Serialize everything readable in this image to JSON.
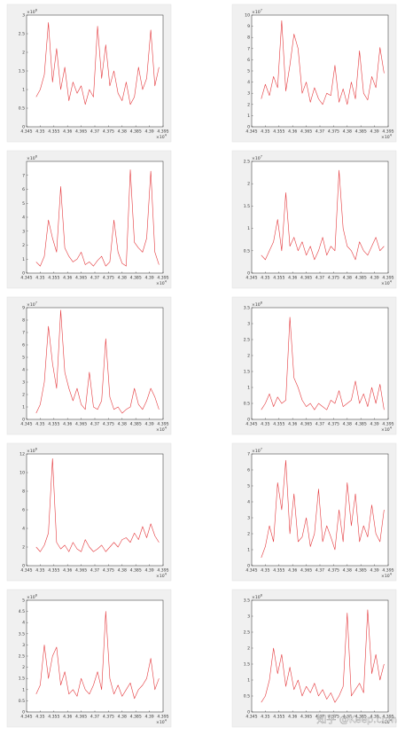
{
  "chart_data": [
    {
      "type": "line",
      "x": [
        4.3485,
        4.35,
        4.3515,
        4.353,
        4.3545,
        4.356,
        4.3575,
        4.359,
        4.3605,
        4.362,
        4.3635,
        4.365,
        4.3665,
        4.368,
        4.3695,
        4.371,
        4.3725,
        4.374,
        4.3755,
        4.377,
        4.3785,
        4.38,
        4.3815,
        4.383,
        4.3845,
        4.386,
        4.3875,
        4.389,
        4.3905,
        4.392,
        4.3935
      ],
      "values": [
        0.8,
        1.0,
        1.4,
        2.8,
        1.2,
        2.1,
        1.0,
        1.6,
        0.7,
        1.2,
        0.9,
        1.1,
        0.6,
        1.0,
        0.8,
        2.7,
        1.3,
        2.2,
        1.1,
        1.5,
        0.9,
        0.7,
        1.2,
        0.6,
        0.8,
        1.6,
        1.0,
        1.3,
        2.6,
        1.1,
        1.6
      ],
      "color": "#e4383c",
      "xlim": [
        4.345,
        4.395
      ],
      "xticks": [
        4.345,
        4.35,
        4.355,
        4.36,
        4.365,
        4.37,
        4.375,
        4.38,
        4.385,
        4.39,
        4.395
      ],
      "ylim": [
        0,
        3
      ],
      "yticks": [
        0,
        0.5,
        1,
        1.5,
        2,
        2.5,
        3
      ],
      "x_multiplier": {
        "base": "×10",
        "power": "4"
      },
      "y_multiplier": {
        "base": "×10",
        "power": "8"
      }
    },
    {
      "type": "line",
      "x": [
        4.3485,
        4.35,
        4.3515,
        4.353,
        4.3545,
        4.356,
        4.3575,
        4.359,
        4.3605,
        4.362,
        4.3635,
        4.365,
        4.3665,
        4.368,
        4.3695,
        4.371,
        4.3725,
        4.374,
        4.3755,
        4.377,
        4.3785,
        4.38,
        4.3815,
        4.383,
        4.3845,
        4.386,
        4.3875,
        4.389,
        4.3905,
        4.392,
        4.3935
      ],
      "values": [
        2.5,
        3.8,
        2.8,
        4.5,
        3.5,
        9.5,
        3.2,
        5.5,
        8.3,
        7.0,
        3.0,
        4.0,
        2.2,
        3.5,
        2.5,
        2.0,
        3.0,
        2.8,
        5.5,
        2.2,
        3.4,
        2.0,
        4.0,
        2.5,
        6.8,
        3.0,
        2.4,
        4.5,
        3.5,
        7.1,
        4.8
      ],
      "color": "#e4383c",
      "xlim": [
        4.345,
        4.395
      ],
      "xticks": [
        4.345,
        4.35,
        4.355,
        4.36,
        4.365,
        4.37,
        4.375,
        4.38,
        4.385,
        4.39,
        4.395
      ],
      "ylim": [
        0,
        10
      ],
      "yticks": [
        0,
        1,
        2,
        3,
        4,
        5,
        6,
        7,
        8,
        9,
        10
      ],
      "x_multiplier": {
        "base": "×10",
        "power": "4"
      },
      "y_multiplier": {
        "base": "×10",
        "power": "7"
      }
    },
    {
      "type": "line",
      "x": [
        4.3485,
        4.35,
        4.3515,
        4.353,
        4.3545,
        4.356,
        4.3575,
        4.359,
        4.3605,
        4.362,
        4.3635,
        4.365,
        4.3665,
        4.368,
        4.3695,
        4.371,
        4.3725,
        4.374,
        4.3755,
        4.377,
        4.3785,
        4.38,
        4.3815,
        4.383,
        4.3845,
        4.386,
        4.3875,
        4.389,
        4.3905,
        4.392,
        4.3935
      ],
      "values": [
        0.8,
        0.5,
        1.2,
        3.8,
        2.5,
        1.5,
        6.2,
        1.8,
        1.2,
        0.8,
        1.0,
        1.5,
        0.6,
        0.8,
        0.5,
        0.9,
        1.2,
        0.5,
        0.8,
        3.8,
        1.5,
        0.7,
        0.5,
        7.4,
        2.2,
        1.8,
        1.5,
        2.5,
        7.3,
        1.5,
        0.6
      ],
      "color": "#e4383c",
      "xlim": [
        4.345,
        4.395
      ],
      "xticks": [
        4.345,
        4.35,
        4.355,
        4.36,
        4.365,
        4.37,
        4.375,
        4.38,
        4.385,
        4.39,
        4.395
      ],
      "ylim": [
        0,
        8
      ],
      "yticks": [
        0,
        1,
        2,
        3,
        4,
        5,
        6,
        7
      ],
      "x_multiplier": {
        "base": "×10",
        "power": "4"
      },
      "y_multiplier": {
        "base": "×10",
        "power": "8"
      }
    },
    {
      "type": "line",
      "x": [
        4.3485,
        4.35,
        4.3515,
        4.353,
        4.3545,
        4.356,
        4.3575,
        4.359,
        4.3605,
        4.362,
        4.3635,
        4.365,
        4.3665,
        4.368,
        4.3695,
        4.371,
        4.3725,
        4.374,
        4.3755,
        4.377,
        4.3785,
        4.38,
        4.3815,
        4.383,
        4.3845,
        4.386,
        4.3875,
        4.389,
        4.3905,
        4.392,
        4.3935
      ],
      "values": [
        0.4,
        0.3,
        0.5,
        0.7,
        1.2,
        0.5,
        1.8,
        0.6,
        0.8,
        0.5,
        0.7,
        0.4,
        0.6,
        0.3,
        0.5,
        0.8,
        0.4,
        0.6,
        0.5,
        2.3,
        1.0,
        0.6,
        0.5,
        0.3,
        0.7,
        0.5,
        0.4,
        0.6,
        0.8,
        0.5,
        0.6
      ],
      "color": "#e4383c",
      "xlim": [
        4.345,
        4.395
      ],
      "xticks": [
        4.345,
        4.35,
        4.355,
        4.36,
        4.365,
        4.37,
        4.375,
        4.38,
        4.385,
        4.39,
        4.395
      ],
      "ylim": [
        0,
        2.5
      ],
      "yticks": [
        0,
        0.5,
        1,
        1.5,
        2,
        2.5
      ],
      "x_multiplier": {
        "base": "×10",
        "power": "4"
      },
      "y_multiplier": {
        "base": "×10",
        "power": "7"
      }
    },
    {
      "type": "line",
      "x": [
        4.3485,
        4.35,
        4.3515,
        4.353,
        4.3545,
        4.356,
        4.3575,
        4.359,
        4.3605,
        4.362,
        4.3635,
        4.365,
        4.3665,
        4.368,
        4.3695,
        4.371,
        4.3725,
        4.374,
        4.3755,
        4.377,
        4.3785,
        4.38,
        4.3815,
        4.383,
        4.3845,
        4.386,
        4.3875,
        4.389,
        4.3905,
        4.392,
        4.3935
      ],
      "values": [
        0.5,
        1.2,
        3.0,
        7.5,
        4.5,
        2.5,
        8.8,
        3.8,
        2.5,
        1.5,
        2.5,
        1.2,
        0.8,
        3.8,
        1.0,
        0.8,
        1.5,
        6.5,
        1.8,
        0.8,
        1.0,
        0.5,
        0.8,
        1.0,
        2.5,
        1.2,
        0.8,
        1.5,
        2.5,
        1.8,
        0.8
      ],
      "color": "#e4383c",
      "xlim": [
        4.345,
        4.395
      ],
      "xticks": [
        4.345,
        4.35,
        4.355,
        4.36,
        4.365,
        4.37,
        4.375,
        4.38,
        4.385,
        4.39,
        4.395
      ],
      "ylim": [
        0,
        9
      ],
      "yticks": [
        0,
        1,
        2,
        3,
        4,
        5,
        6,
        7,
        8,
        9
      ],
      "x_multiplier": {
        "base": "×10",
        "power": "4"
      },
      "y_multiplier": {
        "base": "×10",
        "power": "7"
      }
    },
    {
      "type": "line",
      "x": [
        4.3485,
        4.35,
        4.3515,
        4.353,
        4.3545,
        4.356,
        4.3575,
        4.359,
        4.3605,
        4.362,
        4.3635,
        4.365,
        4.3665,
        4.368,
        4.3695,
        4.371,
        4.3725,
        4.374,
        4.3755,
        4.377,
        4.3785,
        4.38,
        4.3815,
        4.383,
        4.3845,
        4.386,
        4.3875,
        4.389,
        4.3905,
        4.392,
        4.3935
      ],
      "values": [
        0.3,
        0.5,
        0.8,
        0.4,
        0.7,
        0.5,
        0.6,
        3.2,
        1.3,
        1.0,
        0.6,
        0.4,
        0.5,
        0.3,
        0.5,
        0.4,
        0.3,
        0.6,
        0.5,
        0.9,
        0.4,
        0.5,
        0.6,
        1.2,
        0.5,
        0.8,
        0.4,
        1.0,
        0.5,
        1.1,
        0.3
      ],
      "color": "#e4383c",
      "xlim": [
        4.345,
        4.395
      ],
      "xticks": [
        4.345,
        4.35,
        4.355,
        4.36,
        4.365,
        4.37,
        4.375,
        4.38,
        4.385,
        4.39,
        4.395
      ],
      "ylim": [
        0,
        3.5
      ],
      "yticks": [
        0,
        0.5,
        1,
        1.5,
        2,
        2.5,
        3,
        3.5
      ],
      "x_multiplier": {
        "base": "×10",
        "power": "4"
      },
      "y_multiplier": {
        "base": "×10",
        "power": "8"
      }
    },
    {
      "type": "line",
      "x": [
        4.3485,
        4.35,
        4.3515,
        4.353,
        4.3545,
        4.356,
        4.3575,
        4.359,
        4.3605,
        4.362,
        4.3635,
        4.365,
        4.3665,
        4.368,
        4.3695,
        4.371,
        4.3725,
        4.374,
        4.3755,
        4.377,
        4.3785,
        4.38,
        4.3815,
        4.383,
        4.3845,
        4.386,
        4.3875,
        4.389,
        4.3905,
        4.392,
        4.3935
      ],
      "values": [
        2.0,
        1.5,
        2.2,
        3.5,
        11.5,
        2.5,
        1.8,
        2.2,
        1.5,
        2.5,
        1.8,
        1.5,
        2.8,
        2.0,
        1.5,
        1.8,
        2.2,
        1.5,
        2.0,
        2.5,
        2.0,
        2.8,
        3.0,
        2.5,
        3.5,
        2.8,
        4.2,
        3.0,
        4.5,
        3.2,
        2.5
      ],
      "color": "#e4383c",
      "xlim": [
        4.345,
        4.395
      ],
      "xticks": [
        4.345,
        4.35,
        4.355,
        4.36,
        4.365,
        4.37,
        4.375,
        4.38,
        4.385,
        4.39,
        4.395
      ],
      "ylim": [
        0,
        12
      ],
      "yticks": [
        0,
        2,
        4,
        6,
        8,
        10,
        12
      ],
      "x_multiplier": {
        "base": "×10",
        "power": "4"
      },
      "y_multiplier": {
        "base": "×10",
        "power": "6"
      }
    },
    {
      "type": "line",
      "x": [
        4.3485,
        4.35,
        4.3515,
        4.353,
        4.3545,
        4.356,
        4.3575,
        4.359,
        4.3605,
        4.362,
        4.3635,
        4.365,
        4.3665,
        4.368,
        4.3695,
        4.371,
        4.3725,
        4.374,
        4.3755,
        4.377,
        4.3785,
        4.38,
        4.3815,
        4.383,
        4.3845,
        4.386,
        4.3875,
        4.389,
        4.3905,
        4.392,
        4.3935
      ],
      "values": [
        0.5,
        1.2,
        2.5,
        1.5,
        5.2,
        3.5,
        6.6,
        2.0,
        4.5,
        1.5,
        1.8,
        3.0,
        1.2,
        2.0,
        4.8,
        1.5,
        2.5,
        1.8,
        1.0,
        3.5,
        1.5,
        5.2,
        2.5,
        4.5,
        1.5,
        2.5,
        1.8,
        3.8,
        2.0,
        1.5,
        3.5
      ],
      "color": "#e4383c",
      "xlim": [
        4.345,
        4.395
      ],
      "xticks": [
        4.345,
        4.35,
        4.355,
        4.36,
        4.365,
        4.37,
        4.375,
        4.38,
        4.385,
        4.39,
        4.395
      ],
      "ylim": [
        0,
        7
      ],
      "yticks": [
        0,
        1,
        2,
        3,
        4,
        5,
        6,
        7
      ],
      "x_multiplier": {
        "base": "×10",
        "power": "4"
      },
      "y_multiplier": {
        "base": "×10",
        "power": "7"
      }
    },
    {
      "type": "line",
      "x": [
        4.3485,
        4.35,
        4.3515,
        4.353,
        4.3545,
        4.356,
        4.3575,
        4.359,
        4.3605,
        4.362,
        4.3635,
        4.365,
        4.3665,
        4.368,
        4.3695,
        4.371,
        4.3725,
        4.374,
        4.3755,
        4.377,
        4.3785,
        4.38,
        4.3815,
        4.383,
        4.3845,
        4.386,
        4.3875,
        4.389,
        4.3905,
        4.392,
        4.3935
      ],
      "values": [
        0.8,
        1.2,
        3.0,
        1.5,
        2.5,
        2.9,
        1.2,
        1.8,
        0.8,
        1.0,
        0.7,
        1.5,
        1.0,
        0.8,
        1.2,
        1.8,
        1.0,
        4.5,
        1.5,
        0.8,
        1.2,
        0.7,
        1.0,
        1.3,
        0.6,
        1.0,
        1.2,
        1.5,
        2.4,
        1.0,
        1.5
      ],
      "color": "#e4383c",
      "xlim": [
        4.345,
        4.395
      ],
      "xticks": [
        4.345,
        4.35,
        4.355,
        4.36,
        4.365,
        4.37,
        4.375,
        4.38,
        4.385,
        4.39,
        4.395
      ],
      "ylim": [
        0,
        5
      ],
      "yticks": [
        0,
        0.5,
        1,
        1.5,
        2,
        2.5,
        3,
        3.5,
        4,
        4.5,
        5
      ],
      "x_multiplier": {
        "base": "×10",
        "power": "4"
      },
      "y_multiplier": {
        "base": "×10",
        "power": "8"
      }
    },
    {
      "type": "line",
      "x": [
        4.3485,
        4.35,
        4.3515,
        4.353,
        4.3545,
        4.356,
        4.3575,
        4.359,
        4.3605,
        4.362,
        4.3635,
        4.365,
        4.3665,
        4.368,
        4.3695,
        4.371,
        4.3725,
        4.374,
        4.3755,
        4.377,
        4.3785,
        4.38,
        4.3815,
        4.383,
        4.3845,
        4.386,
        4.3875,
        4.389,
        4.3905,
        4.392,
        4.3935
      ],
      "values": [
        0.3,
        0.5,
        1.0,
        2.0,
        1.2,
        1.8,
        0.8,
        1.4,
        0.7,
        1.0,
        0.5,
        0.8,
        0.6,
        0.9,
        0.5,
        0.7,
        0.4,
        0.6,
        0.3,
        0.5,
        0.8,
        3.1,
        0.5,
        0.7,
        0.9,
        0.6,
        3.2,
        1.2,
        1.8,
        1.0,
        1.5
      ],
      "color": "#e4383c",
      "xlim": [
        4.345,
        4.395
      ],
      "xticks": [
        4.345,
        4.35,
        4.355,
        4.36,
        4.365,
        4.37,
        4.375,
        4.38,
        4.385,
        4.39,
        4.395
      ],
      "ylim": [
        0,
        3.5
      ],
      "yticks": [
        0,
        0.5,
        1,
        1.5,
        2,
        2.5,
        3,
        3.5
      ],
      "x_multiplier": {
        "base": "×10",
        "power": "4"
      },
      "y_multiplier": {
        "base": "×10",
        "power": "8"
      }
    }
  ],
  "watermark": "知乎 @Keep.com"
}
